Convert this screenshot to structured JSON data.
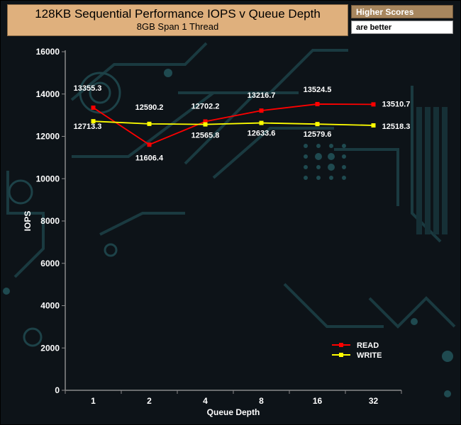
{
  "header": {
    "title": "128KB Sequential Performance IOPS v Queue Depth",
    "subtitle": "8GB Span 1 Thread",
    "note_line1": "Higher Scores",
    "note_line2": "are better"
  },
  "chart_data": {
    "type": "line",
    "title": "128KB Sequential Performance IOPS v Queue Depth",
    "subtitle": "8GB Span 1 Thread",
    "xlabel": "Queue Depth",
    "ylabel": "IOPS",
    "categories": [
      "1",
      "2",
      "4",
      "8",
      "16",
      "32"
    ],
    "ylim": [
      0,
      16000
    ],
    "yticks": [
      0,
      2000,
      4000,
      6000,
      8000,
      10000,
      12000,
      14000,
      16000
    ],
    "grid": false,
    "legend_position": "bottom-right",
    "series": [
      {
        "name": "READ",
        "color": "#ff0000",
        "values": [
          13355.3,
          11606.4,
          12702.2,
          13216.7,
          13524.5,
          13510.7
        ],
        "labels": [
          "13355.3",
          "11606.4",
          "12702.2",
          "13216.7",
          "13524.5",
          "13510.7"
        ]
      },
      {
        "name": "WRITE",
        "color": "#ffff00",
        "values": [
          12713.3,
          12590.2,
          12565.8,
          12633.6,
          12579.6,
          12518.3
        ],
        "labels": [
          "12713.3",
          "12590.2",
          "12565.8",
          "12633.6",
          "12579.6",
          "12518.3"
        ]
      }
    ]
  }
}
